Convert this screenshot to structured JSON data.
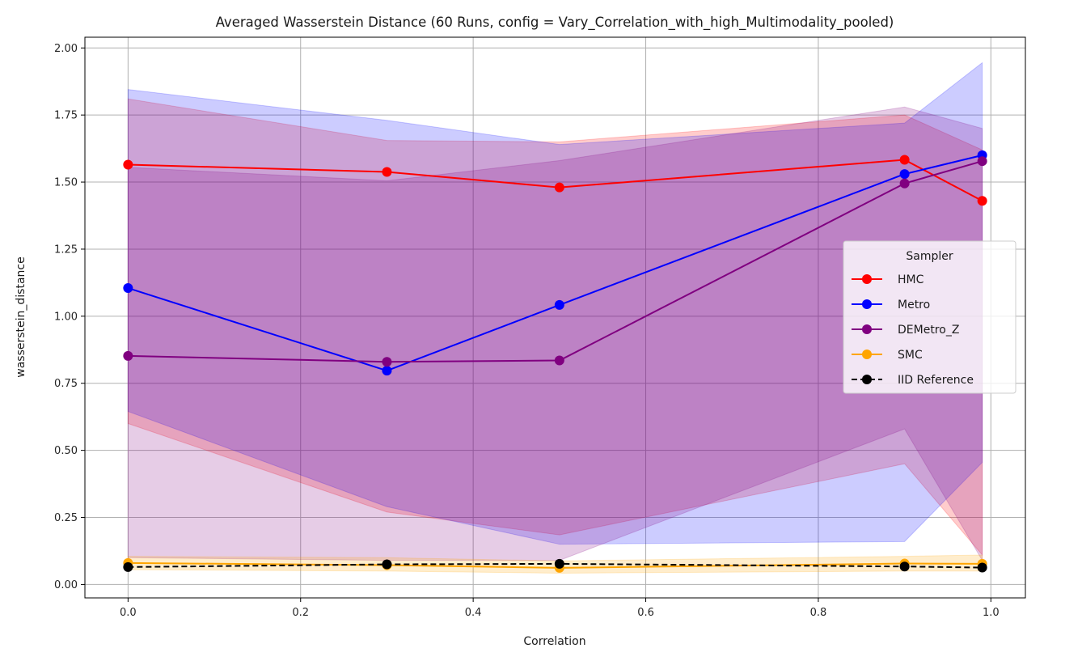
{
  "chart_data": {
    "type": "line",
    "title": "Averaged Wasserstein Distance (60 Runs, config = Vary_Correlation_with_high_Multimodality_pooled)",
    "xlabel": "Correlation",
    "ylabel": "wasserstein_distance",
    "xlim": [
      -0.05,
      1.04
    ],
    "ylim": [
      -0.05,
      2.04
    ],
    "xticks": [
      0.0,
      0.2,
      0.4,
      0.6,
      0.8,
      1.0
    ],
    "xtick_labels": [
      "0.0",
      "0.2",
      "0.4",
      "0.6",
      "0.8",
      "1.0"
    ],
    "yticks": [
      0.0,
      0.25,
      0.5,
      0.75,
      1.0,
      1.25,
      1.5,
      1.75,
      2.0
    ],
    "ytick_labels": [
      "0.00",
      "0.25",
      "0.50",
      "0.75",
      "1.00",
      "1.25",
      "1.50",
      "1.75",
      "2.00"
    ],
    "grid": true,
    "legend": {
      "title": "Sampler",
      "position": "center-right"
    },
    "x": [
      0.0,
      0.3,
      0.5,
      0.9,
      0.99
    ],
    "series": [
      {
        "name": "HMC",
        "color": "#ff0000",
        "dashed": false,
        "values": [
          1.565,
          1.538,
          1.48,
          1.583,
          1.43
        ],
        "band_lower": [
          0.6,
          0.27,
          0.185,
          0.45,
          0.11
        ],
        "band_upper": [
          1.81,
          1.655,
          1.65,
          1.75,
          1.62
        ]
      },
      {
        "name": "Metro",
        "color": "#0000ff",
        "dashed": false,
        "values": [
          1.105,
          0.797,
          1.042,
          1.53,
          1.6
        ],
        "band_lower": [
          0.645,
          0.29,
          0.15,
          0.16,
          0.455
        ],
        "band_upper": [
          1.845,
          1.73,
          1.64,
          1.72,
          1.945
        ]
      },
      {
        "name": "DEMetro_Z",
        "color": "#800080",
        "dashed": false,
        "values": [
          0.852,
          0.83,
          0.835,
          1.495,
          1.578
        ],
        "band_lower": [
          0.1,
          0.09,
          0.09,
          0.58,
          0.09
        ],
        "band_upper": [
          1.555,
          1.505,
          1.58,
          1.78,
          1.7
        ]
      },
      {
        "name": "SMC",
        "color": "#ffa500",
        "dashed": false,
        "values": [
          0.08,
          0.072,
          0.062,
          0.078,
          0.077
        ],
        "band_lower": [
          0.055,
          0.05,
          0.042,
          0.05,
          0.05
        ],
        "band_upper": [
          0.105,
          0.1,
          0.088,
          0.105,
          0.11
        ]
      },
      {
        "name": "IID Reference",
        "color": "#000000",
        "dashed": true,
        "values": [
          0.065,
          0.075,
          0.077,
          0.067,
          0.063
        ]
      }
    ]
  }
}
